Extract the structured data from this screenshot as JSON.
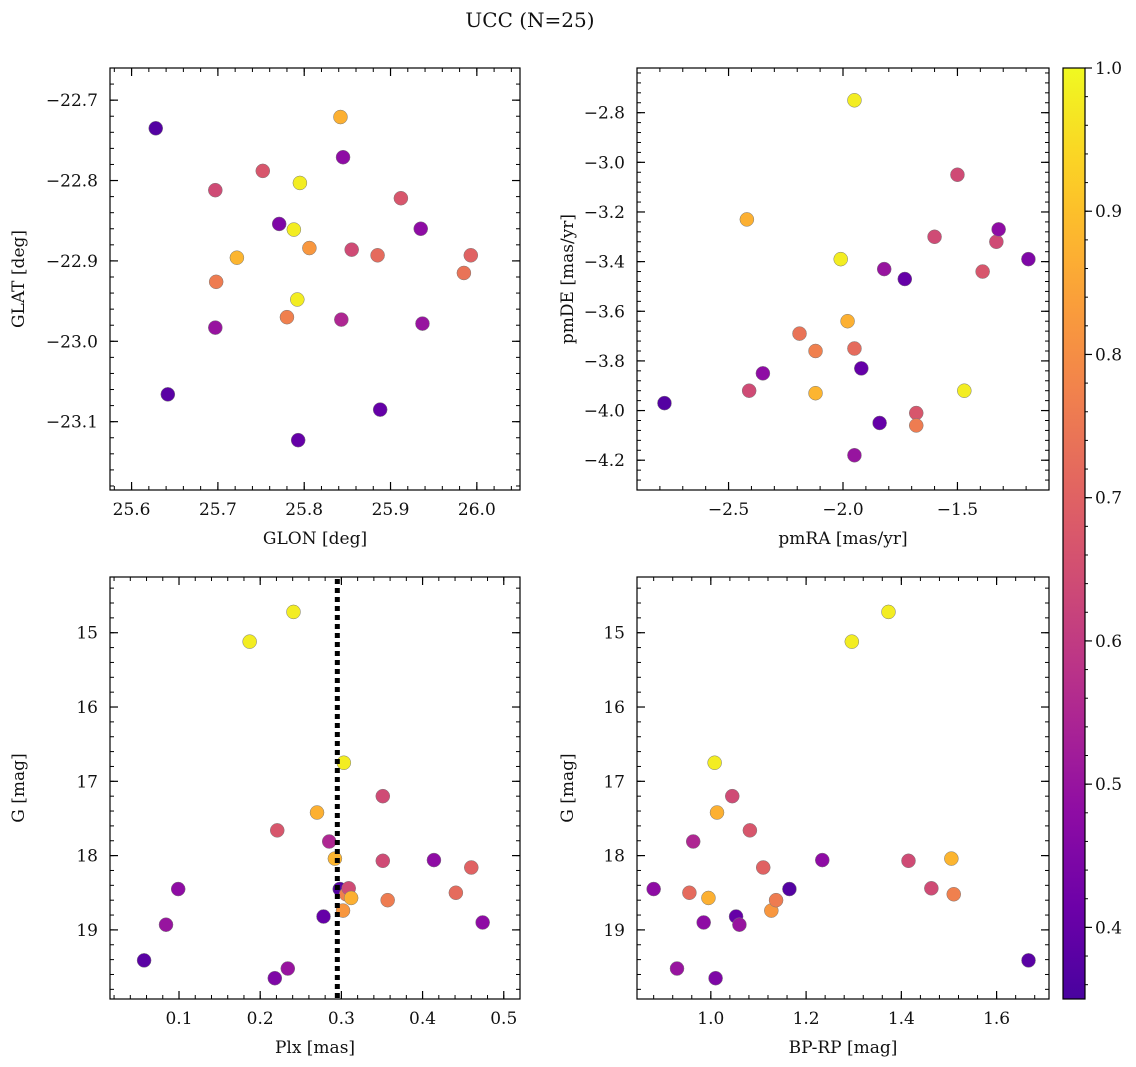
{
  "figure": {
    "title": "UCC (N=25)",
    "colorbar": {
      "min": 0.35,
      "max": 1.0,
      "ticks": [
        0.4,
        0.5,
        0.6,
        0.7,
        0.8,
        0.9,
        1.0
      ],
      "tick_labels": [
        "0.4",
        "0.5",
        "0.6",
        "0.7",
        "0.8",
        "0.9",
        "1.0"
      ],
      "colormap": "plasma"
    }
  },
  "chart_data": [
    {
      "type": "scatter",
      "id": "glon-glat",
      "xlabel": "GLON [deg]",
      "ylabel": "GLAT [deg]",
      "xlim": [
        25.575,
        26.05
      ],
      "ylim": [
        -23.185,
        -22.66
      ],
      "yinvert": false,
      "xticks": [
        25.6,
        25.7,
        25.8,
        25.9,
        26.0
      ],
      "xtick_labels": [
        "25.6",
        "25.7",
        "25.8",
        "25.9",
        "26.0"
      ],
      "yticks": [
        -22.7,
        -22.8,
        -22.9,
        -23.0,
        -23.1
      ],
      "ytick_labels": [
        "−22.7",
        "−22.8",
        "−22.9",
        "−23.0",
        "−23.1"
      ],
      "points": [
        {
          "x": 25.628,
          "y": -22.735,
          "c": 0.37
        },
        {
          "x": 25.642,
          "y": -23.066,
          "c": 0.38
        },
        {
          "x": 25.697,
          "y": -22.812,
          "c": 0.64
        },
        {
          "x": 25.698,
          "y": -22.926,
          "c": 0.76
        },
        {
          "x": 25.697,
          "y": -22.983,
          "c": 0.5
        },
        {
          "x": 25.722,
          "y": -22.896,
          "c": 0.88
        },
        {
          "x": 25.752,
          "y": -22.788,
          "c": 0.67
        },
        {
          "x": 25.771,
          "y": -22.854,
          "c": 0.45
        },
        {
          "x": 25.78,
          "y": -22.97,
          "c": 0.77
        },
        {
          "x": 25.788,
          "y": -22.861,
          "c": 0.98
        },
        {
          "x": 25.792,
          "y": -22.948,
          "c": 0.98
        },
        {
          "x": 25.793,
          "y": -23.123,
          "c": 0.4
        },
        {
          "x": 25.795,
          "y": -22.803,
          "c": 0.98
        },
        {
          "x": 25.806,
          "y": -22.884,
          "c": 0.82
        },
        {
          "x": 25.842,
          "y": -22.721,
          "c": 0.87
        },
        {
          "x": 25.843,
          "y": -22.973,
          "c": 0.55
        },
        {
          "x": 25.845,
          "y": -22.771,
          "c": 0.48
        },
        {
          "x": 25.855,
          "y": -22.886,
          "c": 0.64
        },
        {
          "x": 25.885,
          "y": -22.893,
          "c": 0.72
        },
        {
          "x": 25.888,
          "y": -23.085,
          "c": 0.4
        },
        {
          "x": 25.912,
          "y": -22.822,
          "c": 0.67
        },
        {
          "x": 25.935,
          "y": -22.86,
          "c": 0.48
        },
        {
          "x": 25.937,
          "y": -22.978,
          "c": 0.5
        },
        {
          "x": 25.985,
          "y": -22.915,
          "c": 0.74
        },
        {
          "x": 25.993,
          "y": -22.893,
          "c": 0.7
        }
      ]
    },
    {
      "type": "scatter",
      "id": "pmra-pmde",
      "xlabel": "pmRA [mas/yr]",
      "ylabel": "pmDE [mas/yr]",
      "xlim": [
        -2.9,
        -1.1
      ],
      "ylim": [
        -4.32,
        -2.62
      ],
      "yinvert": false,
      "xticks": [
        -2.5,
        -2.0,
        -1.5
      ],
      "xtick_labels": [
        "−2.5",
        "−2.0",
        "−1.5"
      ],
      "yticks": [
        -2.8,
        -3.0,
        -3.2,
        -3.4,
        -3.6,
        -3.8,
        -4.0,
        -4.2
      ],
      "ytick_labels": [
        "−2.8",
        "−3.0",
        "−3.2",
        "−3.4",
        "−3.6",
        "−3.8",
        "−4.0",
        "−4.2"
      ],
      "points": [
        {
          "x": -2.78,
          "y": -3.97,
          "c": 0.37
        },
        {
          "x": -2.42,
          "y": -3.23,
          "c": 0.87
        },
        {
          "x": -2.41,
          "y": -3.92,
          "c": 0.64
        },
        {
          "x": -2.35,
          "y": -3.85,
          "c": 0.48
        },
        {
          "x": -2.19,
          "y": -3.69,
          "c": 0.74
        },
        {
          "x": -2.12,
          "y": -3.76,
          "c": 0.77
        },
        {
          "x": -2.12,
          "y": -3.93,
          "c": 0.88
        },
        {
          "x": -2.01,
          "y": -3.39,
          "c": 0.98
        },
        {
          "x": -1.98,
          "y": -3.64,
          "c": 0.87
        },
        {
          "x": -1.95,
          "y": -2.75,
          "c": 0.98
        },
        {
          "x": -1.95,
          "y": -3.75,
          "c": 0.72
        },
        {
          "x": -1.95,
          "y": -4.18,
          "c": 0.5
        },
        {
          "x": -1.92,
          "y": -3.83,
          "c": 0.4
        },
        {
          "x": -1.84,
          "y": -4.05,
          "c": 0.4
        },
        {
          "x": -1.82,
          "y": -3.43,
          "c": 0.5
        },
        {
          "x": -1.73,
          "y": -3.47,
          "c": 0.4
        },
        {
          "x": -1.68,
          "y": -4.01,
          "c": 0.67
        },
        {
          "x": -1.68,
          "y": -4.06,
          "c": 0.76
        },
        {
          "x": -1.6,
          "y": -3.3,
          "c": 0.64
        },
        {
          "x": -1.5,
          "y": -3.05,
          "c": 0.64
        },
        {
          "x": -1.47,
          "y": -3.92,
          "c": 0.98
        },
        {
          "x": -1.39,
          "y": -3.44,
          "c": 0.67
        },
        {
          "x": -1.33,
          "y": -3.32,
          "c": 0.64
        },
        {
          "x": -1.32,
          "y": -3.27,
          "c": 0.48
        },
        {
          "x": -1.19,
          "y": -3.39,
          "c": 0.45
        }
      ]
    },
    {
      "type": "scatter",
      "id": "plx-g",
      "xlabel": "Plx [mas]",
      "ylabel": "G [mag]",
      "xlim": [
        0.015,
        0.52
      ],
      "ylim": [
        14.25,
        19.93
      ],
      "yinvert": true,
      "xticks": [
        0.1,
        0.2,
        0.3,
        0.4,
        0.5
      ],
      "xtick_labels": [
        "0.1",
        "0.2",
        "0.3",
        "0.4",
        "0.5"
      ],
      "yticks": [
        15,
        16,
        17,
        18,
        19
      ],
      "ytick_labels": [
        "15",
        "16",
        "17",
        "18",
        "19"
      ],
      "vline": 0.295,
      "points": [
        {
          "x": 0.057,
          "y": 19.41,
          "c": 0.38
        },
        {
          "x": 0.084,
          "y": 18.93,
          "c": 0.5
        },
        {
          "x": 0.099,
          "y": 18.45,
          "c": 0.48
        },
        {
          "x": 0.187,
          "y": 15.12,
          "c": 0.98
        },
        {
          "x": 0.218,
          "y": 19.65,
          "c": 0.45
        },
        {
          "x": 0.221,
          "y": 17.66,
          "c": 0.67
        },
        {
          "x": 0.234,
          "y": 19.52,
          "c": 0.5
        },
        {
          "x": 0.241,
          "y": 14.72,
          "c": 0.98
        },
        {
          "x": 0.27,
          "y": 17.42,
          "c": 0.87
        },
        {
          "x": 0.278,
          "y": 18.82,
          "c": 0.4
        },
        {
          "x": 0.285,
          "y": 17.81,
          "c": 0.55
        },
        {
          "x": 0.292,
          "y": 18.04,
          "c": 0.88
        },
        {
          "x": 0.298,
          "y": 18.45,
          "c": 0.37
        },
        {
          "x": 0.302,
          "y": 18.74,
          "c": 0.82
        },
        {
          "x": 0.303,
          "y": 16.75,
          "c": 0.98
        },
        {
          "x": 0.306,
          "y": 18.52,
          "c": 0.77
        },
        {
          "x": 0.309,
          "y": 18.44,
          "c": 0.64
        },
        {
          "x": 0.312,
          "y": 18.57,
          "c": 0.87
        },
        {
          "x": 0.351,
          "y": 17.2,
          "c": 0.64
        },
        {
          "x": 0.351,
          "y": 18.07,
          "c": 0.64
        },
        {
          "x": 0.357,
          "y": 18.6,
          "c": 0.76
        },
        {
          "x": 0.414,
          "y": 18.06,
          "c": 0.48
        },
        {
          "x": 0.441,
          "y": 18.5,
          "c": 0.72
        },
        {
          "x": 0.46,
          "y": 18.16,
          "c": 0.7
        },
        {
          "x": 0.474,
          "y": 18.9,
          "c": 0.48
        }
      ]
    },
    {
      "type": "scatter",
      "id": "bprp-g",
      "xlabel": "BP-RP [mag]",
      "ylabel": "G [mag]",
      "xlim": [
        0.845,
        1.71
      ],
      "ylim": [
        14.25,
        19.93
      ],
      "yinvert": true,
      "xticks": [
        1.0,
        1.2,
        1.4,
        1.6
      ],
      "xtick_labels": [
        "1.0",
        "1.2",
        "1.4",
        "1.6"
      ],
      "yticks": [
        15,
        16,
        17,
        18,
        19
      ],
      "ytick_labels": [
        "15",
        "16",
        "17",
        "18",
        "19"
      ],
      "points": [
        {
          "x": 0.88,
          "y": 18.45,
          "c": 0.48
        },
        {
          "x": 0.929,
          "y": 19.52,
          "c": 0.5
        },
        {
          "x": 0.955,
          "y": 18.5,
          "c": 0.72
        },
        {
          "x": 0.963,
          "y": 17.81,
          "c": 0.55
        },
        {
          "x": 0.985,
          "y": 18.9,
          "c": 0.48
        },
        {
          "x": 0.995,
          "y": 18.57,
          "c": 0.87
        },
        {
          "x": 1.008,
          "y": 16.75,
          "c": 0.98
        },
        {
          "x": 1.01,
          "y": 19.65,
          "c": 0.45
        },
        {
          "x": 1.013,
          "y": 17.42,
          "c": 0.87
        },
        {
          "x": 1.045,
          "y": 17.2,
          "c": 0.64
        },
        {
          "x": 1.053,
          "y": 18.82,
          "c": 0.4
        },
        {
          "x": 1.06,
          "y": 18.93,
          "c": 0.5
        },
        {
          "x": 1.082,
          "y": 17.66,
          "c": 0.67
        },
        {
          "x": 1.11,
          "y": 18.16,
          "c": 0.7
        },
        {
          "x": 1.127,
          "y": 18.74,
          "c": 0.82
        },
        {
          "x": 1.137,
          "y": 18.6,
          "c": 0.76
        },
        {
          "x": 1.165,
          "y": 18.45,
          "c": 0.37
        },
        {
          "x": 1.234,
          "y": 18.06,
          "c": 0.48
        },
        {
          "x": 1.296,
          "y": 15.12,
          "c": 0.98
        },
        {
          "x": 1.373,
          "y": 14.72,
          "c": 0.98
        },
        {
          "x": 1.415,
          "y": 18.07,
          "c": 0.64
        },
        {
          "x": 1.463,
          "y": 18.44,
          "c": 0.64
        },
        {
          "x": 1.505,
          "y": 18.04,
          "c": 0.88
        },
        {
          "x": 1.51,
          "y": 18.52,
          "c": 0.77
        },
        {
          "x": 1.667,
          "y": 19.41,
          "c": 0.38
        }
      ]
    }
  ]
}
